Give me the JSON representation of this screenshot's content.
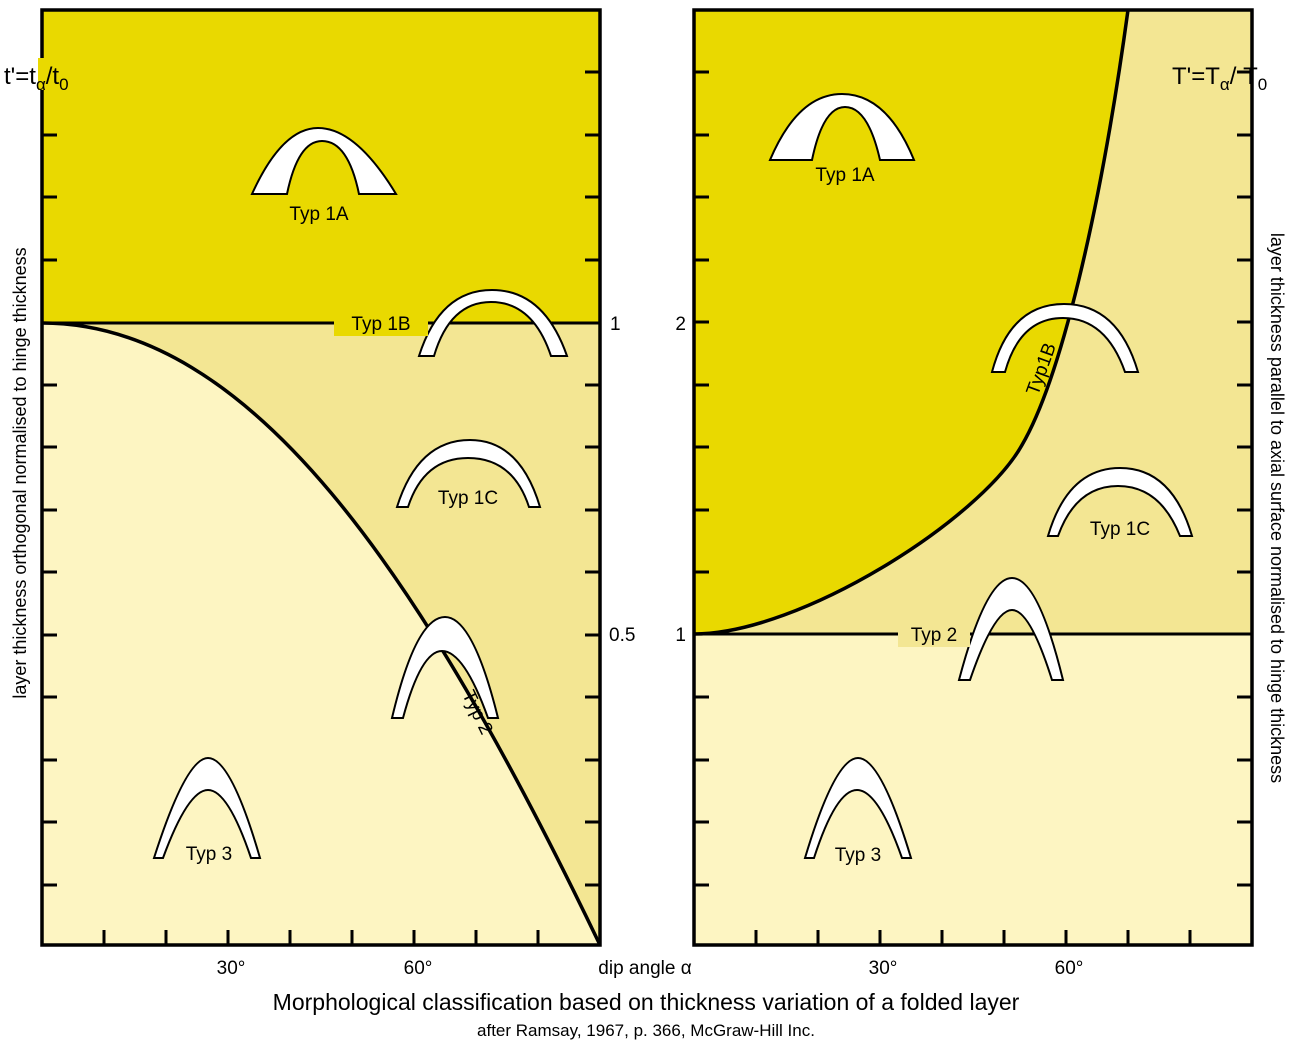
{
  "colors": {
    "dark_yellow": "#e9d900",
    "mid_yellow": "#f3e693",
    "light_yellow": "#fdf5c2",
    "line": "#000000",
    "fold_fill": "#ffffff"
  },
  "left_panel": {
    "y_axis_title": "layer thickness orthogonal normalised to hinge thickness",
    "quantity": {
      "main": "t'=t",
      "sub1": "α",
      "mid": "/t",
      "sub2": "0"
    },
    "y_ticks": [
      "1",
      "0.5"
    ],
    "x_ticks": [
      "30°",
      "60°"
    ],
    "x_end_label": "dip angle α",
    "regions": [
      "Typ 1A",
      "Typ 1B",
      "Typ 1C",
      "Typ 2",
      "Typ 3"
    ]
  },
  "right_panel": {
    "y_axis_title": "layer thickness parallel to axial surface normalised to hinge thickness",
    "quantity": {
      "main": "T'=T",
      "sub1": "α",
      "mid": "/ T",
      "sub2": "0"
    },
    "y_ticks": [
      "2",
      "1"
    ],
    "x_ticks": [
      "30°",
      "60°"
    ],
    "regions": [
      "Typ 1A",
      "Typ1B",
      "Typ 1C",
      "Typ 2",
      "Typ 3"
    ]
  },
  "caption": {
    "title": "Morphological classification based on thickness variation of a folded layer",
    "source": "after Ramsay, 1967, p. 366, McGraw-Hill Inc."
  }
}
